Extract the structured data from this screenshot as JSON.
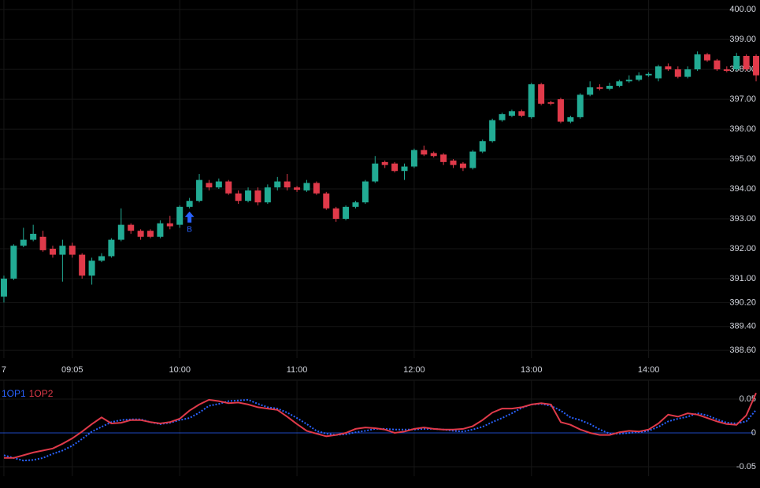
{
  "chart_data": [
    {
      "type": "candlestick",
      "up_color": "#22ab94",
      "down_color": "#e03a4a",
      "grid": true,
      "x": [
        510,
        515,
        520,
        525,
        530,
        535,
        540,
        545,
        550,
        555,
        560,
        565,
        570,
        575,
        580,
        585,
        590,
        595,
        600,
        605,
        610,
        615,
        620,
        625,
        630,
        635,
        640,
        645,
        650,
        655,
        660,
        665,
        670,
        675,
        680,
        685,
        690,
        695,
        700,
        705,
        710,
        715,
        720,
        725,
        730,
        735,
        740,
        745,
        750,
        755,
        760,
        765,
        770,
        775,
        780,
        785,
        790,
        795,
        800,
        805,
        810,
        815,
        820,
        825,
        830,
        835,
        840,
        845,
        850,
        855,
        860,
        865,
        870,
        875,
        880,
        885,
        890,
        895
      ],
      "open": [
        390.4,
        391.0,
        392.1,
        392.3,
        392.4,
        392.0,
        391.8,
        392.1,
        391.8,
        391.1,
        391.6,
        391.75,
        392.3,
        392.8,
        392.6,
        392.6,
        392.4,
        392.85,
        392.8,
        393.4,
        393.6,
        394.2,
        394.05,
        394.25,
        393.85,
        393.6,
        393.95,
        393.55,
        394.05,
        394.25,
        394.05,
        393.95,
        394.2,
        393.85,
        393.35,
        393.0,
        393.4,
        393.55,
        394.25,
        394.9,
        394.85,
        394.6,
        394.75,
        395.3,
        395.2,
        395.15,
        394.95,
        394.85,
        394.7,
        395.25,
        395.6,
        396.3,
        396.45,
        396.6,
        396.4,
        397.5,
        396.9,
        397.0,
        396.25,
        396.4,
        397.15,
        397.4,
        397.35,
        397.45,
        397.6,
        397.65,
        397.8,
        397.7,
        398.1,
        398.0,
        397.75,
        398.0,
        398.5,
        398.3,
        398.0,
        398.0,
        398.45,
        398.45
      ],
      "high": [
        391.1,
        392.15,
        392.7,
        392.8,
        392.6,
        392.1,
        392.3,
        392.2,
        391.85,
        391.7,
        391.85,
        392.35,
        393.35,
        392.85,
        392.65,
        392.65,
        392.95,
        393.1,
        393.45,
        393.7,
        394.5,
        394.3,
        394.35,
        394.3,
        393.95,
        394.05,
        394.05,
        394.15,
        394.4,
        394.5,
        394.1,
        394.3,
        394.25,
        393.9,
        393.4,
        393.45,
        393.6,
        394.3,
        395.1,
        394.95,
        394.9,
        394.85,
        395.35,
        395.45,
        395.25,
        395.2,
        395.0,
        394.9,
        395.3,
        395.65,
        396.35,
        396.55,
        396.65,
        396.65,
        397.55,
        397.55,
        396.95,
        397.05,
        396.45,
        397.2,
        397.6,
        397.5,
        397.55,
        397.65,
        397.8,
        397.9,
        397.9,
        398.15,
        398.2,
        398.1,
        398.1,
        398.6,
        398.55,
        398.35,
        398.1,
        398.55,
        398.5,
        398.5
      ],
      "low": [
        390.2,
        390.95,
        392.05,
        392.25,
        391.9,
        391.7,
        390.9,
        391.7,
        391.0,
        390.8,
        391.55,
        391.7,
        392.25,
        392.5,
        392.3,
        392.35,
        392.35,
        392.65,
        392.7,
        393.35,
        393.55,
        393.95,
        394.0,
        393.8,
        393.5,
        393.55,
        393.45,
        393.5,
        393.95,
        393.95,
        393.9,
        393.9,
        393.8,
        393.3,
        392.9,
        392.95,
        393.35,
        393.5,
        394.2,
        394.7,
        394.55,
        394.3,
        394.7,
        395.1,
        395.05,
        394.8,
        394.7,
        394.6,
        394.65,
        395.2,
        395.55,
        396.25,
        396.4,
        396.4,
        396.35,
        396.8,
        396.8,
        396.2,
        396.2,
        396.35,
        397.1,
        397.3,
        397.3,
        397.4,
        397.55,
        397.6,
        397.75,
        397.6,
        397.95,
        397.7,
        397.7,
        397.95,
        398.25,
        397.95,
        397.9,
        397.95,
        397.95,
        397.6
      ],
      "close": [
        391.0,
        392.1,
        392.3,
        392.5,
        391.95,
        391.8,
        392.1,
        391.8,
        391.1,
        391.6,
        391.75,
        392.3,
        392.8,
        392.6,
        392.4,
        392.4,
        392.85,
        392.75,
        393.4,
        393.6,
        394.3,
        394.05,
        394.25,
        393.85,
        393.6,
        393.95,
        393.55,
        394.05,
        394.25,
        394.05,
        393.97,
        394.2,
        393.85,
        393.35,
        393.0,
        393.4,
        393.55,
        394.25,
        394.85,
        394.8,
        394.6,
        394.75,
        395.3,
        395.15,
        395.1,
        394.9,
        394.8,
        394.7,
        395.25,
        395.6,
        396.3,
        396.5,
        396.6,
        396.45,
        397.5,
        396.85,
        396.85,
        396.25,
        396.4,
        397.15,
        397.4,
        397.35,
        397.45,
        397.6,
        397.65,
        397.8,
        397.85,
        398.1,
        398.0,
        397.75,
        398.0,
        398.5,
        398.3,
        398.0,
        397.95,
        398.45,
        398.0,
        397.8
      ],
      "markers": [
        {
          "x": 605,
          "label": "B",
          "color": "#2962ff"
        }
      ],
      "xlim": [
        508,
        897
      ],
      "xticks": [
        {
          "value": 510,
          "label": "7"
        },
        {
          "value": 545,
          "label": "09:05"
        },
        {
          "value": 600,
          "label": "10:00"
        },
        {
          "value": 660,
          "label": "11:00"
        },
        {
          "value": 720,
          "label": "12:00"
        },
        {
          "value": 780,
          "label": "13:00"
        },
        {
          "value": 840,
          "label": "14:00"
        }
      ],
      "ylim": [
        388.34,
        400.32
      ],
      "yticks": [
        {
          "value": 400,
          "label": "400.00"
        },
        {
          "value": 399,
          "label": "399.00"
        },
        {
          "value": 398,
          "label": "398.00"
        },
        {
          "value": 397,
          "label": "397.00"
        },
        {
          "value": 396,
          "label": "396.00"
        },
        {
          "value": 395,
          "label": "395.00"
        },
        {
          "value": 394,
          "label": "394.00"
        },
        {
          "value": 393,
          "label": "393.00"
        },
        {
          "value": 392,
          "label": "392.00"
        },
        {
          "value": 391,
          "label": "391.00"
        },
        {
          "value": 390.2,
          "label": "390.20"
        },
        {
          "value": 389.4,
          "label": "389.40"
        },
        {
          "value": 388.6,
          "label": "388.60"
        }
      ]
    },
    {
      "type": "line",
      "zero_line_color": "#2962ff",
      "x": [
        510,
        515,
        520,
        525,
        530,
        535,
        540,
        545,
        550,
        555,
        560,
        565,
        570,
        575,
        580,
        585,
        590,
        595,
        600,
        605,
        610,
        615,
        620,
        625,
        630,
        635,
        640,
        645,
        650,
        655,
        660,
        665,
        670,
        675,
        680,
        685,
        690,
        695,
        700,
        705,
        710,
        715,
        720,
        725,
        730,
        735,
        740,
        745,
        750,
        755,
        760,
        765,
        770,
        775,
        780,
        785,
        790,
        795,
        800,
        805,
        810,
        815,
        820,
        825,
        830,
        835,
        840,
        845,
        850,
        855,
        860,
        865,
        870,
        875,
        880,
        885,
        890,
        895
      ],
      "series": [
        {
          "name": "1OP1",
          "color": "#2962ff",
          "dash": true,
          "values": [
            -0.033,
            -0.037,
            -0.041,
            -0.04,
            -0.037,
            -0.031,
            -0.026,
            -0.019,
            -0.009,
            0.002,
            0.009,
            0.016,
            0.019,
            0.02,
            0.02,
            0.016,
            0.013,
            0.015,
            0.019,
            0.022,
            0.03,
            0.04,
            0.043,
            0.047,
            0.048,
            0.049,
            0.043,
            0.038,
            0.036,
            0.03,
            0.022,
            0.013,
            0.003,
            -0.001,
            -0.003,
            -0.002,
            0.001,
            0.003,
            0.006,
            0.006,
            0.005,
            0.005,
            0.005,
            0.006,
            0.006,
            0.005,
            0.003,
            0.002,
            0.005,
            0.009,
            0.016,
            0.022,
            0.029,
            0.037,
            0.042,
            0.043,
            0.04,
            0.033,
            0.023,
            0.019,
            0.013,
            0.005,
            -0.001,
            -0.001,
            0,
            0.001,
            0.003,
            0.009,
            0.017,
            0.021,
            0.024,
            0.029,
            0.026,
            0.02,
            0.015,
            0.014,
            0.017,
            0.034
          ]
        },
        {
          "name": "1OP2",
          "color": "#e03a4a",
          "dash": false,
          "values": [
            -0.037,
            -0.037,
            -0.033,
            -0.029,
            -0.026,
            -0.023,
            -0.016,
            -0.008,
            0.002,
            0.013,
            0.023,
            0.014,
            0.015,
            0.019,
            0.019,
            0.016,
            0.014,
            0.016,
            0.021,
            0.033,
            0.042,
            0.049,
            0.047,
            0.044,
            0.045,
            0.042,
            0.038,
            0.036,
            0.034,
            0.024,
            0.013,
            0.003,
            -0.001,
            -0.005,
            -0.003,
            0,
            0.006,
            0.008,
            0.007,
            0.005,
            0,
            0.002,
            0.006,
            0.008,
            0.006,
            0.005,
            0.005,
            0.006,
            0.01,
            0.019,
            0.03,
            0.036,
            0.036,
            0.038,
            0.042,
            0.044,
            0.042,
            0.016,
            0.012,
            0.005,
            0,
            -0.003,
            -0.003,
            0.001,
            0.003,
            0.002,
            0.005,
            0.014,
            0.027,
            0.024,
            0.029,
            0.027,
            0.022,
            0.017,
            0.013,
            0.012,
            0.026,
            0.059
          ]
        }
      ],
      "xlim": [
        508,
        897
      ],
      "ylim": [
        -0.064,
        0.078
      ],
      "yticks": [
        0.05,
        0,
        -0.05
      ]
    }
  ]
}
